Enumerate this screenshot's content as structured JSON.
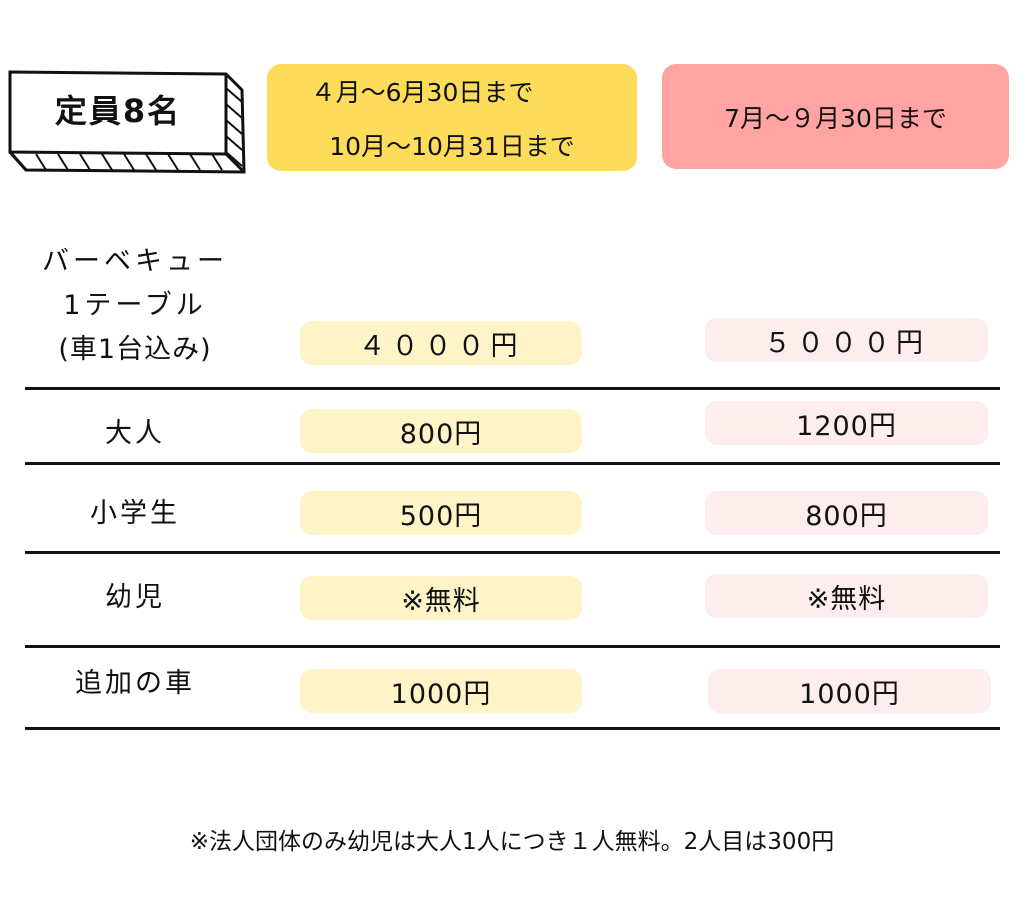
{
  "capacity_label": "定員8名",
  "seasons": [
    {
      "lines": [
        "４月～6月30日まで",
        "10月～10月31日まで"
      ],
      "color": "#FDDC5C"
    },
    {
      "lines": [
        "7月～９月30日まで"
      ],
      "color": "#FFA3A3"
    }
  ],
  "rows": [
    {
      "label": [
        "バーベキュー",
        "1テーブル",
        "(車1台込み)"
      ],
      "prices": [
        "４０００円",
        "５０００円"
      ]
    },
    {
      "label": [
        "大人"
      ],
      "prices": [
        "800円",
        "1200円"
      ]
    },
    {
      "label": [
        "小学生"
      ],
      "prices": [
        "500円",
        "800円"
      ]
    },
    {
      "label": [
        "幼児"
      ],
      "prices": [
        "※無料",
        "※無料"
      ]
    },
    {
      "label": [
        "追加の車"
      ],
      "prices": [
        "1000円",
        "1000円"
      ]
    }
  ],
  "footnote": "※法人団体のみ幼児は大人1人につき１人無料。2人目は300円"
}
